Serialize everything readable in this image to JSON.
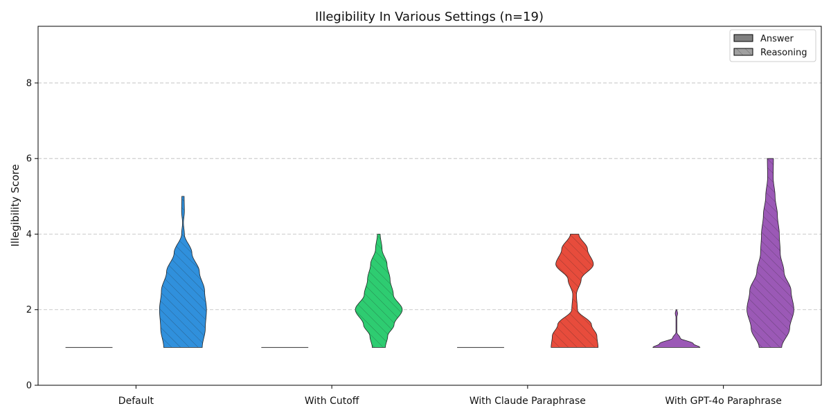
{
  "chart_data": {
    "type": "violin",
    "title": "Illegibility In Various Settings (n=19)",
    "xlabel": "",
    "ylabel": "Illegibility Score",
    "ylim": [
      0,
      9.5
    ],
    "yticks": [
      0,
      2,
      4,
      6,
      8
    ],
    "grid": "y-dashed",
    "legend_position": "top-right",
    "categories": [
      "Default",
      "With Cutoff",
      "With Claude Paraphrase",
      "With GPT-4o Paraphrase"
    ],
    "legend": [
      {
        "label": "Answer",
        "style": "solid"
      },
      {
        "label": "Reasoning",
        "style": "hatched"
      }
    ],
    "colors": {
      "Default": "#3090dc",
      "With Cutoff": "#2ecc71",
      "With Claude Paraphrase": "#e74c3c",
      "With GPT-4o Paraphrase": "#9b59b6"
    },
    "series": [
      {
        "category": "Default",
        "kind": "Answer",
        "range": [
          1,
          1
        ],
        "density": [
          [
            1,
            1.0
          ]
        ]
      },
      {
        "category": "Default",
        "kind": "Reasoning",
        "range": [
          1,
          5
        ],
        "density": [
          [
            1.0,
            0.82
          ],
          [
            1.5,
            0.95
          ],
          [
            2.0,
            1.0
          ],
          [
            2.5,
            0.92
          ],
          [
            3.0,
            0.7
          ],
          [
            3.5,
            0.38
          ],
          [
            4.0,
            0.06
          ],
          [
            4.3,
            0.02
          ],
          [
            4.6,
            0.06
          ],
          [
            5.0,
            0.05
          ]
        ]
      },
      {
        "category": "With Cutoff",
        "kind": "Answer",
        "range": [
          1,
          1
        ],
        "density": [
          [
            1,
            1.0
          ]
        ]
      },
      {
        "category": "With Cutoff",
        "kind": "Reasoning",
        "range": [
          1,
          4
        ],
        "density": [
          [
            1.0,
            0.28
          ],
          [
            1.3,
            0.38
          ],
          [
            1.6,
            0.65
          ],
          [
            2.0,
            1.0
          ],
          [
            2.4,
            0.62
          ],
          [
            2.8,
            0.48
          ],
          [
            3.2,
            0.35
          ],
          [
            3.6,
            0.14
          ],
          [
            4.0,
            0.06
          ]
        ]
      },
      {
        "category": "With GPT-4o Paraphrase",
        "kind": "Answer",
        "range": [
          1,
          2
        ],
        "density": [
          [
            1.0,
            1.0
          ],
          [
            1.1,
            0.72
          ],
          [
            1.25,
            0.16
          ],
          [
            1.4,
            0.02
          ],
          [
            1.8,
            0.02
          ],
          [
            1.9,
            0.05
          ],
          [
            2.0,
            0.02
          ]
        ]
      },
      {
        "category": "With Claude Paraphrase",
        "kind": "Answer",
        "range": [
          1,
          1
        ],
        "density": [
          [
            1,
            1.0
          ]
        ]
      },
      {
        "category": "With Claude Paraphrase",
        "kind": "Reasoning",
        "range": [
          1,
          4
        ],
        "density": [
          [
            1.0,
            1.0
          ],
          [
            1.3,
            0.95
          ],
          [
            1.6,
            0.72
          ],
          [
            2.0,
            0.12
          ],
          [
            2.4,
            0.08
          ],
          [
            2.8,
            0.28
          ],
          [
            3.2,
            0.8
          ],
          [
            3.6,
            0.55
          ],
          [
            4.0,
            0.18
          ]
        ]
      },
      {
        "category": "With GPT-4o Paraphrase",
        "kind": "Reasoning",
        "range": [
          1,
          6
        ],
        "density": [
          [
            1.0,
            0.48
          ],
          [
            1.5,
            0.82
          ],
          [
            2.0,
            1.0
          ],
          [
            2.5,
            0.88
          ],
          [
            3.0,
            0.58
          ],
          [
            3.5,
            0.42
          ],
          [
            4.0,
            0.38
          ],
          [
            4.5,
            0.3
          ],
          [
            5.0,
            0.2
          ],
          [
            5.5,
            0.12
          ],
          [
            6.0,
            0.13
          ]
        ]
      }
    ]
  }
}
